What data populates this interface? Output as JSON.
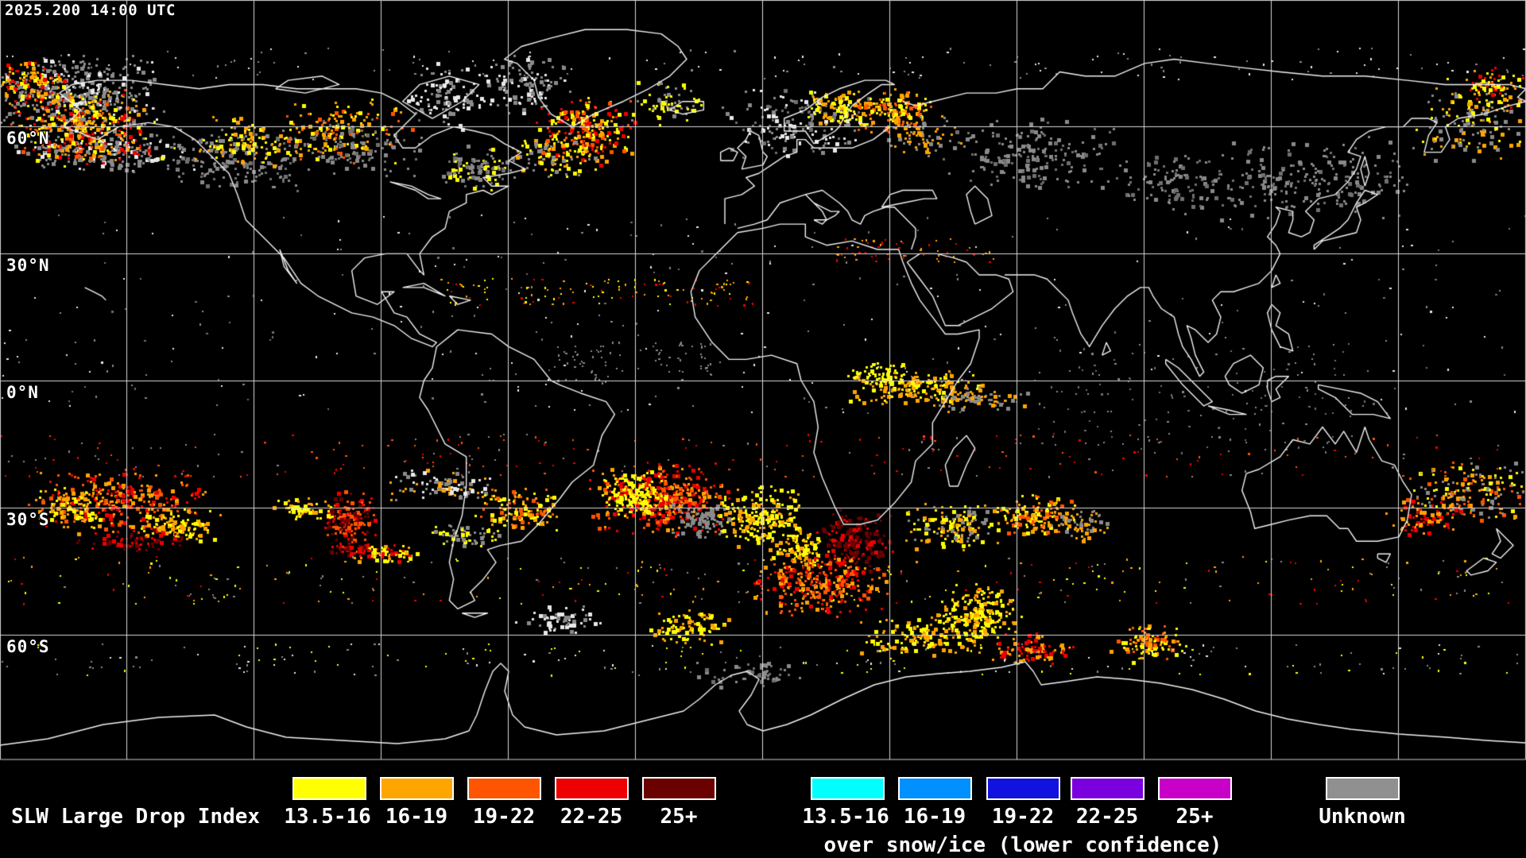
{
  "header": {
    "timestamp": "2025.200 14:00 UTC"
  },
  "map": {
    "latitude_labels": [
      "60°N",
      "30°N",
      "0°N",
      "30°S",
      "60°S"
    ],
    "grid": {
      "lat_step_deg": 30,
      "lon_step_deg": 30
    },
    "background_color": "#000000",
    "coastline_color": "#f2f2f2",
    "gridline_color": "#d8d8d8"
  },
  "legend": {
    "title": "SLW Large Drop Index",
    "bins": [
      {
        "label": "13.5-16",
        "color": "#ffff00"
      },
      {
        "label": "16-19",
        "color": "#ffa500"
      },
      {
        "label": "19-22",
        "color": "#ff5500"
      },
      {
        "label": "22-25",
        "color": "#ee0000"
      },
      {
        "label": "25+",
        "color": "#6b0000"
      }
    ],
    "snow_ice_bins": [
      {
        "label": "13.5-16",
        "color": "#00ffff"
      },
      {
        "label": "16-19",
        "color": "#0090ff"
      },
      {
        "label": "19-22",
        "color": "#1212e0"
      },
      {
        "label": "22-25",
        "color": "#7a00e0"
      },
      {
        "label": "25+",
        "color": "#c800c8"
      }
    ],
    "snow_ice_note": "over snow/ice (lower confidence)",
    "unknown": {
      "label": "Unknown",
      "color": "#909090"
    }
  }
}
